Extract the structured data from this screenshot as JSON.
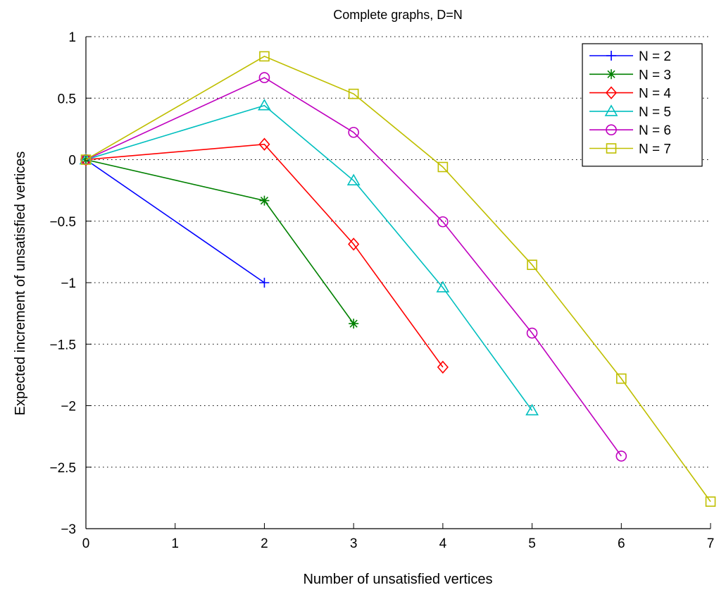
{
  "chart_data": {
    "type": "line",
    "title": "Complete graphs, D=N",
    "xlabel": "Number of unsatisfied vertices",
    "ylabel": "Expected increment of unsatisfied vertices",
    "xlim": [
      0,
      7
    ],
    "ylim": [
      -3,
      1
    ],
    "xticks": [
      0,
      1,
      2,
      3,
      4,
      5,
      6,
      7
    ],
    "yticks": [
      -3,
      -2.5,
      -2,
      -1.5,
      -1,
      -0.5,
      0,
      0.5,
      1
    ],
    "ytick_labels": [
      "−3",
      "−2.5",
      "−2",
      "−1.5",
      "−1",
      "−0.5",
      "0",
      "0.5",
      "1"
    ],
    "grid": "horizontal dotted",
    "legend_position": "top-right",
    "series": [
      {
        "name": "N = 2",
        "color": "#0000ff",
        "marker": "plus",
        "x": [
          0,
          2
        ],
        "y": [
          0,
          -1
        ]
      },
      {
        "name": "N = 3",
        "color": "#008000",
        "marker": "star",
        "x": [
          0,
          2,
          3
        ],
        "y": [
          0,
          -0.333,
          -1.333
        ]
      },
      {
        "name": "N = 4",
        "color": "#ff0000",
        "marker": "diamond",
        "x": [
          0,
          2,
          3,
          4
        ],
        "y": [
          0,
          0.125,
          -0.687,
          -1.687
        ]
      },
      {
        "name": "N = 5",
        "color": "#00bfbf",
        "marker": "triangle",
        "x": [
          0,
          2,
          3,
          4,
          5
        ],
        "y": [
          0,
          0.44,
          -0.17,
          -1.04,
          -2.04
        ]
      },
      {
        "name": "N = 6",
        "color": "#bf00bf",
        "marker": "circle",
        "x": [
          0,
          2,
          3,
          4,
          5,
          6
        ],
        "y": [
          0,
          0.667,
          0.222,
          -0.505,
          -1.41,
          -2.41
        ]
      },
      {
        "name": "N = 7",
        "color": "#bfbf00",
        "marker": "square",
        "x": [
          0,
          2,
          3,
          4,
          5,
          6,
          7
        ],
        "y": [
          0,
          0.84,
          0.535,
          -0.06,
          -0.855,
          -1.78,
          -2.78
        ]
      }
    ]
  }
}
